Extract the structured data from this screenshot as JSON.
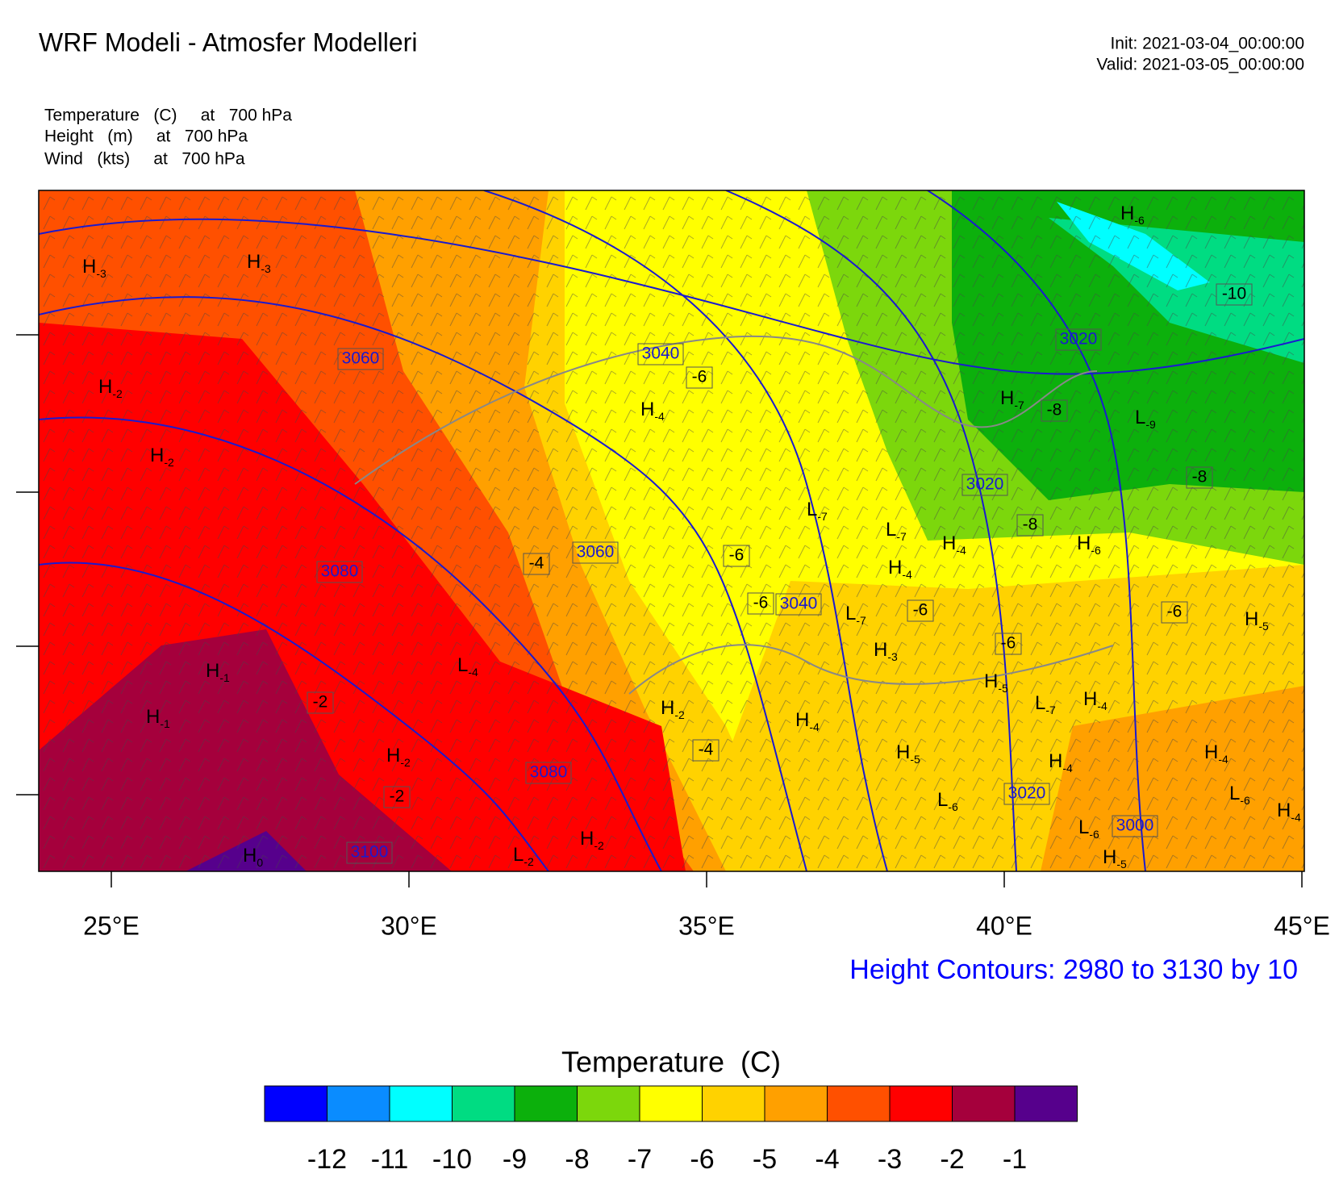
{
  "header": {
    "title": "WRF Modeli - Atmosfer Modelleri",
    "init": "Init: 2021-03-04_00:00:00",
    "valid": "Valid: 2021-03-05_00:00:00"
  },
  "fields": [
    "Temperature   (C)     at   700 hPa",
    "Height   (m)     at   700 hPa",
    "Wind   (kts)     at   700 hPa"
  ],
  "map": {
    "xticks": [
      {
        "value": 25,
        "label": "25°E"
      },
      {
        "value": 30,
        "label": "30°E"
      },
      {
        "value": 35,
        "label": "35°E"
      },
      {
        "value": 40,
        "label": "40°E"
      },
      {
        "value": 45,
        "label": "45°E"
      }
    ],
    "height_labels": [
      3060,
      3040,
      3020,
      3020,
      3060,
      3080,
      3040,
      3020,
      3000,
      3080,
      3100
    ],
    "temp_labels": [
      -6,
      -8,
      -10,
      -8,
      -8,
      -4,
      -6,
      -6,
      -6,
      -6,
      -6,
      -2,
      -4,
      -2
    ],
    "extrema": [
      {
        "label": "H",
        "sub": -3
      },
      {
        "label": "H",
        "sub": -3
      },
      {
        "label": "H",
        "sub": -2
      },
      {
        "label": "H",
        "sub": -2
      },
      {
        "label": "H",
        "sub": -4
      },
      {
        "label": "H",
        "sub": -6
      },
      {
        "label": "H",
        "sub": -7
      },
      {
        "label": "L",
        "sub": -9
      },
      {
        "label": "L",
        "sub": -7
      },
      {
        "label": "L",
        "sub": -7
      },
      {
        "label": "H",
        "sub": -4
      },
      {
        "label": "H",
        "sub": -6
      },
      {
        "label": "H",
        "sub": -4
      },
      {
        "label": "L",
        "sub": -7
      },
      {
        "label": "H",
        "sub": -3
      },
      {
        "label": "H",
        "sub": -5
      },
      {
        "label": "L",
        "sub": -4
      },
      {
        "label": "H",
        "sub": -1
      },
      {
        "label": "H",
        "sub": -1
      },
      {
        "label": "H",
        "sub": -2
      },
      {
        "label": "H",
        "sub": -5
      },
      {
        "label": "L",
        "sub": -7
      },
      {
        "label": "H",
        "sub": -4
      },
      {
        "label": "H",
        "sub": -4
      },
      {
        "label": "H",
        "sub": -2
      },
      {
        "label": "H",
        "sub": -5
      },
      {
        "label": "H",
        "sub": -4
      },
      {
        "label": "H",
        "sub": -4
      },
      {
        "label": "L",
        "sub": -6
      },
      {
        "label": "L",
        "sub": -6
      },
      {
        "label": "H",
        "sub": -4
      },
      {
        "label": "L",
        "sub": -6
      },
      {
        "label": "H",
        "sub": -5
      },
      {
        "label": "L",
        "sub": -2
      },
      {
        "label": "H",
        "sub": -2
      },
      {
        "label": "H",
        "sub": 0
      }
    ],
    "contour_note": "Height Contours: 2980 to 3130 by 10"
  },
  "colorbar": {
    "title": "Temperature  (C)",
    "colors": [
      "#0000ff",
      "#0a8cff",
      "#00ffff",
      "#00dc82",
      "#0cb00c",
      "#7cd70c",
      "#ffff00",
      "#ffd200",
      "#ffa000",
      "#ff5000",
      "#ff0000",
      "#a5003c",
      "#56008c"
    ],
    "labels": [
      -12,
      -11,
      -10,
      -9,
      -8,
      -7,
      -6,
      -5,
      -4,
      -3,
      -2,
      -1
    ]
  }
}
